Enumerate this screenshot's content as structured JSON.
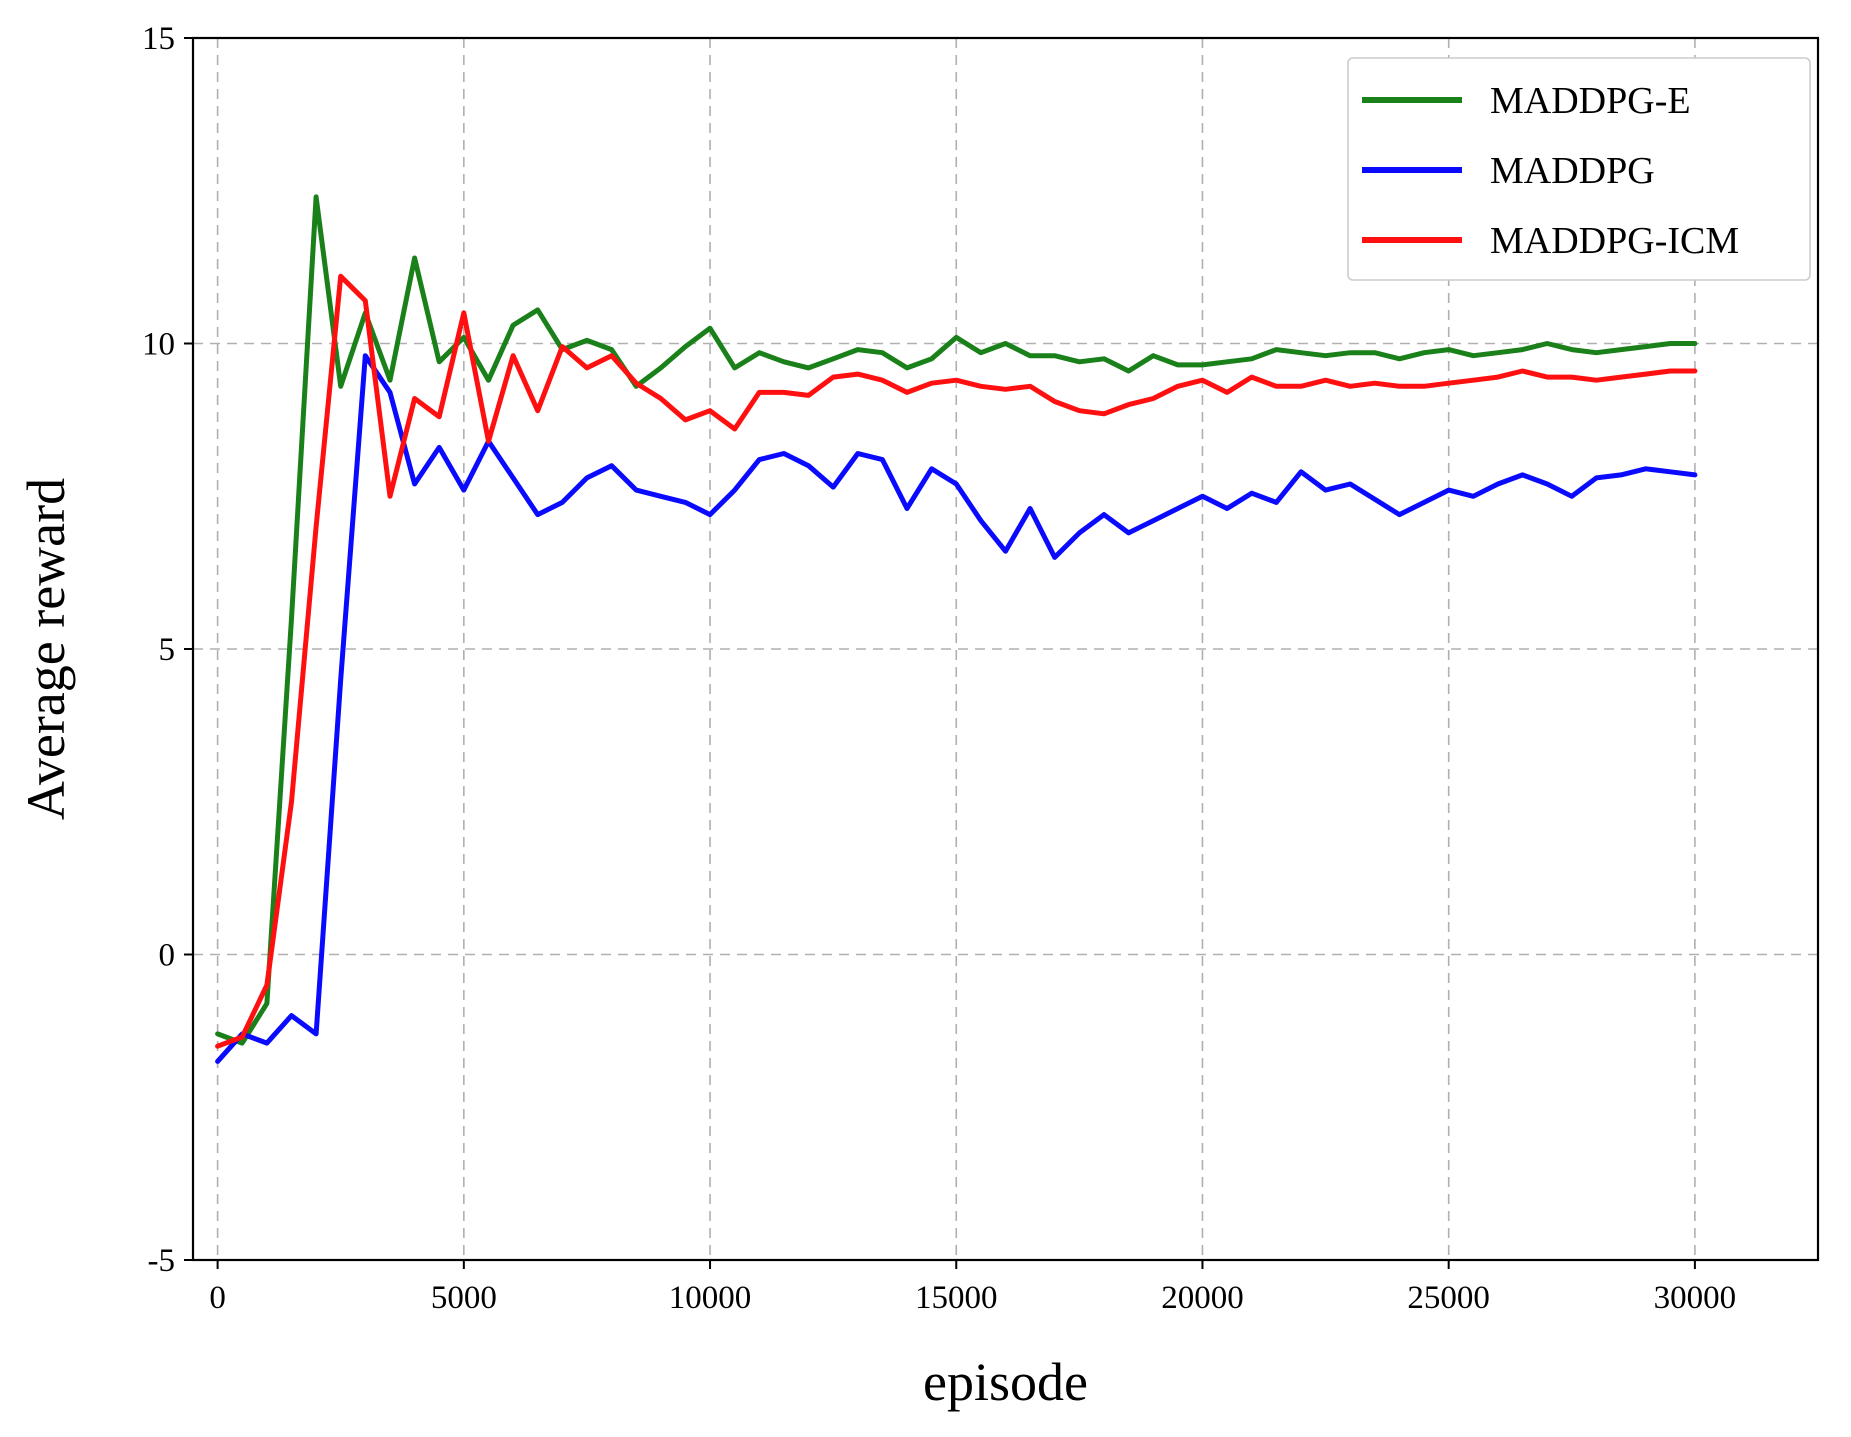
{
  "chart_data": {
    "type": "line",
    "title": "",
    "xlabel": "episode",
    "ylabel": "Average reward",
    "xlim": [
      -500,
      32500
    ],
    "ylim": [
      -5,
      15
    ],
    "xticks": [
      0,
      5000,
      10000,
      15000,
      20000,
      25000,
      30000
    ],
    "xtick_labels": [
      "0",
      "5000",
      "10000",
      "15000",
      "20000",
      "25000",
      "30000"
    ],
    "yticks": [
      -5,
      0,
      5,
      10,
      15
    ],
    "ytick_labels": [
      "-5",
      "0",
      "5",
      "10",
      "15"
    ],
    "grid": true,
    "legend_position": "top-right",
    "x": [
      0,
      500,
      1000,
      1500,
      2000,
      2500,
      3000,
      3500,
      4000,
      4500,
      5000,
      5500,
      6000,
      6500,
      7000,
      7500,
      8000,
      8500,
      9000,
      9500,
      10000,
      10500,
      11000,
      11500,
      12000,
      12500,
      13000,
      13500,
      14000,
      14500,
      15000,
      15500,
      16000,
      16500,
      17000,
      17500,
      18000,
      18500,
      19000,
      19500,
      20000,
      20500,
      21000,
      21500,
      22000,
      22500,
      23000,
      23500,
      24000,
      24500,
      25000,
      25500,
      26000,
      26500,
      27000,
      27500,
      28000,
      28500,
      29000,
      29500,
      30000
    ],
    "series": [
      {
        "name": "MADDPG-E",
        "color": "#1a801a",
        "values": [
          -1.3,
          -1.45,
          -0.8,
          5.5,
          12.4,
          9.3,
          10.5,
          9.4,
          11.4,
          9.7,
          10.1,
          9.4,
          10.3,
          10.55,
          9.9,
          10.05,
          9.9,
          9.3,
          9.6,
          9.95,
          10.25,
          9.6,
          9.85,
          9.7,
          9.6,
          9.75,
          9.9,
          9.85,
          9.6,
          9.75,
          10.1,
          9.85,
          10.0,
          9.8,
          9.8,
          9.7,
          9.75,
          9.55,
          9.8,
          9.65,
          9.65,
          9.7,
          9.75,
          9.9,
          9.85,
          9.8,
          9.85,
          9.85,
          9.75,
          9.85,
          9.9,
          9.8,
          9.85,
          9.9,
          10.0,
          9.9,
          9.85,
          9.9,
          9.95,
          10.0,
          10.0
        ]
      },
      {
        "name": "MADDPG",
        "color": "#0a0aff",
        "values": [
          -1.75,
          -1.3,
          -1.45,
          -1.0,
          -1.3,
          4.5,
          9.8,
          9.2,
          7.7,
          8.3,
          7.6,
          8.4,
          7.8,
          7.2,
          7.4,
          7.8,
          8.0,
          7.6,
          7.5,
          7.4,
          7.2,
          7.6,
          8.1,
          8.2,
          8.0,
          7.65,
          8.2,
          8.1,
          7.3,
          7.95,
          7.7,
          7.1,
          6.6,
          7.3,
          6.5,
          6.9,
          7.2,
          6.9,
          7.1,
          7.3,
          7.5,
          7.3,
          7.55,
          7.4,
          7.9,
          7.6,
          7.7,
          7.45,
          7.2,
          7.4,
          7.6,
          7.5,
          7.7,
          7.85,
          7.7,
          7.5,
          7.8,
          7.85,
          7.95,
          7.9,
          7.85
        ]
      },
      {
        "name": "MADDPG-ICM",
        "color": "#ff1010",
        "values": [
          -1.5,
          -1.35,
          -0.5,
          2.5,
          7.0,
          11.1,
          10.7,
          7.5,
          9.1,
          8.8,
          10.5,
          8.4,
          9.8,
          8.9,
          9.95,
          9.6,
          9.8,
          9.35,
          9.1,
          8.75,
          8.9,
          8.6,
          9.2,
          9.2,
          9.15,
          9.45,
          9.5,
          9.4,
          9.2,
          9.35,
          9.4,
          9.3,
          9.25,
          9.3,
          9.05,
          8.9,
          8.85,
          9.0,
          9.1,
          9.3,
          9.4,
          9.2,
          9.45,
          9.3,
          9.3,
          9.4,
          9.3,
          9.35,
          9.3,
          9.3,
          9.35,
          9.4,
          9.45,
          9.55,
          9.45,
          9.45,
          9.4,
          9.45,
          9.5,
          9.55,
          9.55
        ]
      }
    ]
  }
}
